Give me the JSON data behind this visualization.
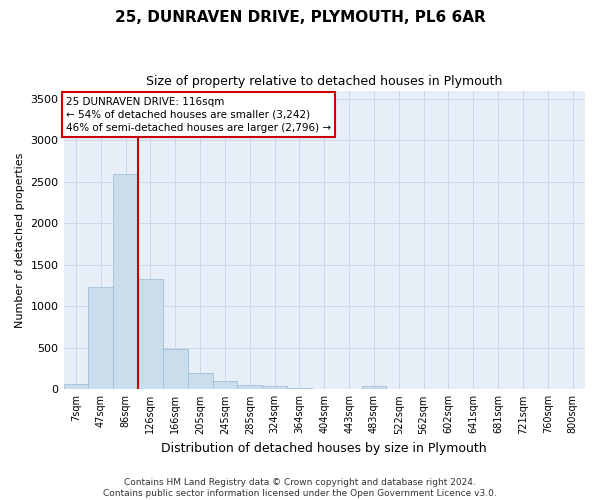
{
  "title": "25, DUNRAVEN DRIVE, PLYMOUTH, PL6 6AR",
  "subtitle": "Size of property relative to detached houses in Plymouth",
  "xlabel": "Distribution of detached houses by size in Plymouth",
  "ylabel": "Number of detached properties",
  "bar_color": "#c9dded",
  "bar_edge_color": "#9ab8d4",
  "grid_color": "#ccd8e8",
  "background_color": "#e8eef8",
  "categories": [
    "7sqm",
    "47sqm",
    "86sqm",
    "126sqm",
    "166sqm",
    "205sqm",
    "245sqm",
    "285sqm",
    "324sqm",
    "364sqm",
    "404sqm",
    "443sqm",
    "483sqm",
    "522sqm",
    "562sqm",
    "602sqm",
    "641sqm",
    "681sqm",
    "721sqm",
    "760sqm",
    "800sqm"
  ],
  "values": [
    60,
    1230,
    2590,
    1330,
    490,
    195,
    105,
    55,
    45,
    10,
    5,
    5,
    45,
    0,
    0,
    0,
    0,
    0,
    0,
    0,
    0
  ],
  "ylim": [
    0,
    3600
  ],
  "yticks": [
    0,
    500,
    1000,
    1500,
    2000,
    2500,
    3000,
    3500
  ],
  "property_label": "25 DUNRAVEN DRIVE: 116sqm",
  "annotation_line1": "← 54% of detached houses are smaller (3,242)",
  "annotation_line2": "46% of semi-detached houses are larger (2,796) →",
  "annotation_box_color": "#ffffff",
  "annotation_border_color": "#cc0000",
  "vline_color": "#cc0000",
  "vline_bin_index": 2,
  "footer_line1": "Contains HM Land Registry data © Crown copyright and database right 2024.",
  "footer_line2": "Contains public sector information licensed under the Open Government Licence v3.0."
}
